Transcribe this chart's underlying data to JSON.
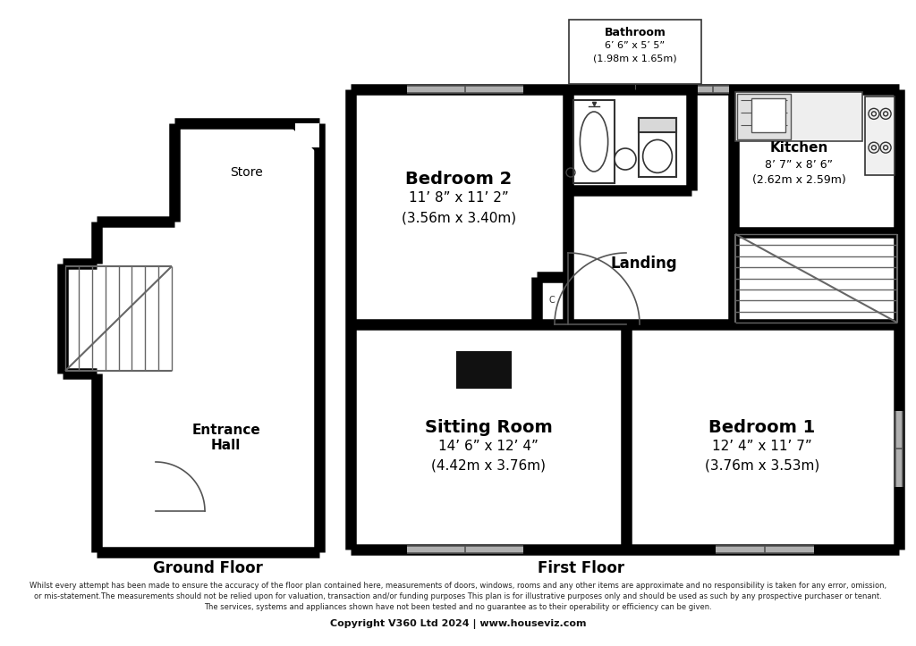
{
  "bg_color": "#ffffff",
  "wall_color": "#000000",
  "wall_lw": 9,
  "title_ground": "Ground Floor",
  "title_first": "First Floor",
  "disclaimer_line1": "Whilst every attempt has been made to ensure the accuracy of the floor plan contained here, measurements of doors, windows, rooms and any other items are approximate and no responsibility is taken for any error, omission,",
  "disclaimer_line2": "or mis-statement.The measurements should not be relied upon for valuation, transaction and/or funding purposes This plan is for illustrative purposes only and should be used as such by any prospective purchaser or tenant.",
  "disclaimer_line3": "The services, systems and appliances shown have not been tested and no guarantee as to their operability or efficiency can be given.",
  "copyright": "Copyright V360 Ltd 2024 | www.houseviz.com",
  "rooms": {
    "bedroom2": {
      "label": "Bedroom 2",
      "sub": "11’ 8” x 11’ 2”",
      "sub2": "(3.56m x 3.40m)"
    },
    "bathroom": {
      "label": "Bathroom",
      "sub": "6’ 6” x 5’ 5”",
      "sub2": "(1.98m x 1.65m)"
    },
    "kitchen": {
      "label": "Kitchen",
      "sub": "8’ 7” x 8’ 6”",
      "sub2": "(2.62m x 2.59m)"
    },
    "landing": {
      "label": "Landing",
      "sub": "",
      "sub2": ""
    },
    "sitting": {
      "label": "Sitting Room",
      "sub": "14’ 6” x 12’ 4”",
      "sub2": "(4.42m x 3.76m)"
    },
    "bedroom1": {
      "label": "Bedroom 1",
      "sub": "12’ 4” x 11’ 7”",
      "sub2": "(3.76m x 3.53m)"
    },
    "store": {
      "label": "Store",
      "sub": "",
      "sub2": ""
    },
    "entrance": {
      "label": "Entrance\nHall",
      "sub": "",
      "sub2": ""
    }
  }
}
